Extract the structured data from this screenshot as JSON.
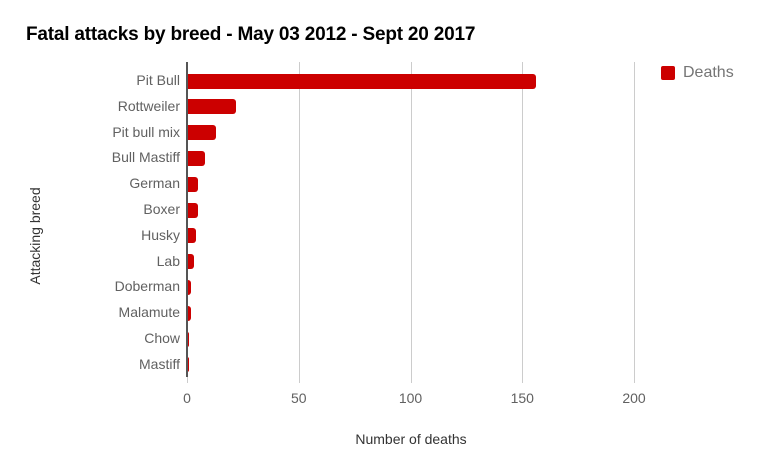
{
  "chart_data": {
    "type": "bar",
    "orientation": "horizontal",
    "title": "Fatal attacks by breed - May 03 2012 - Sept 20 2017",
    "xlabel": "Number of deaths",
    "ylabel": "Attacking breed",
    "categories": [
      "Pit Bull",
      "Rottweiler",
      "Pit bull mix",
      "Bull Mastiff",
      "German",
      "Boxer",
      "Husky",
      "Lab",
      "Doberman",
      "Malamute",
      "Chow",
      "Mastiff"
    ],
    "series": [
      {
        "name": "Deaths",
        "color": "#cc0000",
        "values": [
          156,
          22,
          13,
          8,
          5,
          5,
          4,
          3,
          2,
          2,
          1,
          1
        ]
      }
    ],
    "xlim": [
      0,
      200
    ],
    "x_ticks": [
      "0",
      "50",
      "100",
      "150",
      "200"
    ],
    "grid": true,
    "legend_position": "right"
  },
  "legend": {
    "label": "Deaths"
  }
}
